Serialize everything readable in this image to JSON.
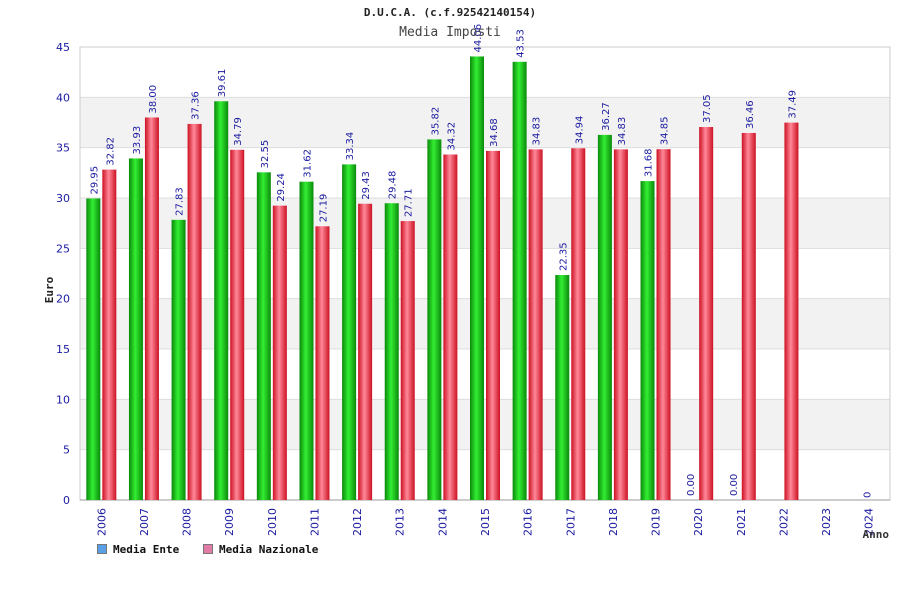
{
  "chart_data": {
    "type": "bar",
    "title": "D.U.C.A. (c.f.92542140154)",
    "subtitle": "Media Imposti",
    "xlabel": "Anno",
    "ylabel": "Euro",
    "ylim": [
      0,
      45
    ],
    "yticks": [
      "0",
      "5",
      "10",
      "15",
      "20",
      "25",
      "30",
      "35",
      "40",
      "45"
    ],
    "categories": [
      "2006",
      "2007",
      "2008",
      "2009",
      "2010",
      "2011",
      "2012",
      "2013",
      "2014",
      "2015",
      "2016",
      "2017",
      "2018",
      "2019",
      "2020",
      "2021",
      "2022",
      "2023",
      "2024"
    ],
    "series": [
      {
        "name": "Media Ente",
        "legend_color": "#5aa0e6",
        "bar_color": "#22bb22",
        "values": [
          29.95,
          33.93,
          27.83,
          39.61,
          32.55,
          31.62,
          33.34,
          29.48,
          35.82,
          44.06,
          43.53,
          22.35,
          36.27,
          31.68,
          0,
          0,
          null,
          null,
          null
        ],
        "labels": [
          "29.95",
          "33.93",
          "27.83",
          "39.61",
          "32.55",
          "31.62",
          "33.34",
          "29.48",
          "35.82",
          "44.06",
          "43.53",
          "22.35",
          "36.27",
          "31.68",
          "0.00",
          "0.00",
          "",
          "",
          ""
        ]
      },
      {
        "name": "Media Nazionale",
        "legend_color": "#e07aa6",
        "bar_color": "#ee3344",
        "values": [
          32.82,
          38.0,
          37.36,
          34.79,
          29.24,
          27.19,
          29.43,
          27.71,
          34.32,
          34.68,
          34.83,
          34.94,
          34.83,
          34.85,
          37.05,
          36.46,
          37.49,
          null,
          null
        ],
        "labels": [
          "32.82",
          "38.00",
          "37.36",
          "34.79",
          "29.24",
          "27.19",
          "29.43",
          "27.71",
          "34.32",
          "34.68",
          "34.83",
          "34.94",
          "34.83",
          "34.85",
          "37.05",
          "36.46",
          "37.49",
          "",
          ""
        ]
      }
    ],
    "extra_label": {
      "category": "2024",
      "text": "0"
    },
    "legend": "bottom-left",
    "grid": true
  }
}
